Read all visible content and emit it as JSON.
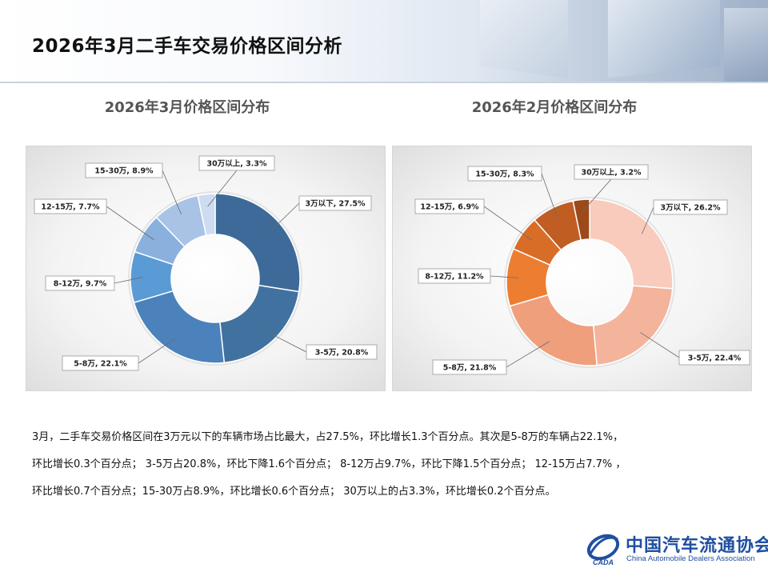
{
  "page": {
    "title": "2026年3月二手车交易价格区间分析"
  },
  "chart_data": [
    {
      "type": "pie",
      "donut": true,
      "title": "2026年3月价格区间分布",
      "categories": [
        "3万以下",
        "3-5万",
        "5-8万",
        "8-12万",
        "12-15万",
        "15-30万",
        "30万以上"
      ],
      "values": [
        27.5,
        20.8,
        22.1,
        9.7,
        7.7,
        8.9,
        3.3
      ],
      "labels": [
        "3万以下, 27.5%",
        "3-5万, 20.8%",
        "5-8万, 22.1%",
        "8-12万, 9.7%",
        "12-15万, 7.7%",
        "15-30万, 8.9%",
        "30万以上, 3.3%"
      ],
      "colors": [
        "#3d6a98",
        "#41719f",
        "#4b82bb",
        "#5b9bd5",
        "#8ab0de",
        "#a9c3e6",
        "#cddcf0"
      ]
    },
    {
      "type": "pie",
      "donut": true,
      "title": "2026年2月价格区间分布",
      "categories": [
        "3万以下",
        "3-5万",
        "5-8万",
        "8-12万",
        "12-15万",
        "15-30万",
        "30万以上"
      ],
      "values": [
        26.2,
        22.4,
        21.8,
        11.2,
        6.9,
        8.3,
        3.2
      ],
      "labels": [
        "3万以下, 26.2%",
        "3-5万, 22.4%",
        "5-8万, 21.8%",
        "8-12万, 11.2%",
        "12-15万, 6.9%",
        "15-30万, 8.3%",
        "30万以上, 3.2%"
      ],
      "colors": [
        "#f8cbbd",
        "#f4b49c",
        "#ef9f7c",
        "#ed7d31",
        "#d86d28",
        "#c05d23",
        "#9c4a1a"
      ]
    }
  ],
  "description": {
    "lines": [
      "3月，二手车交易价格区间在3万元以下的车辆市场占比最大，占27.5%，环比增长1.3个百分点。其次是5-8万的车辆占22.1%，",
      "环比增长0.3个百分点；  3-5万占20.8%，环比下降1.6个百分点；  8-12万占9.7%，环比下降1.5个百分点；  12-15万占7.7% ，",
      "环比增长0.7个百分点；15-30万占8.9%，环比增长0.6个百分点；  30万以上的占3.3%，环比增长0.2个百分点。"
    ]
  },
  "logo": {
    "name_cn": "中国汽车流通协会",
    "name_en": "China Automobile Dealers Association",
    "mark_text": "CADA"
  }
}
